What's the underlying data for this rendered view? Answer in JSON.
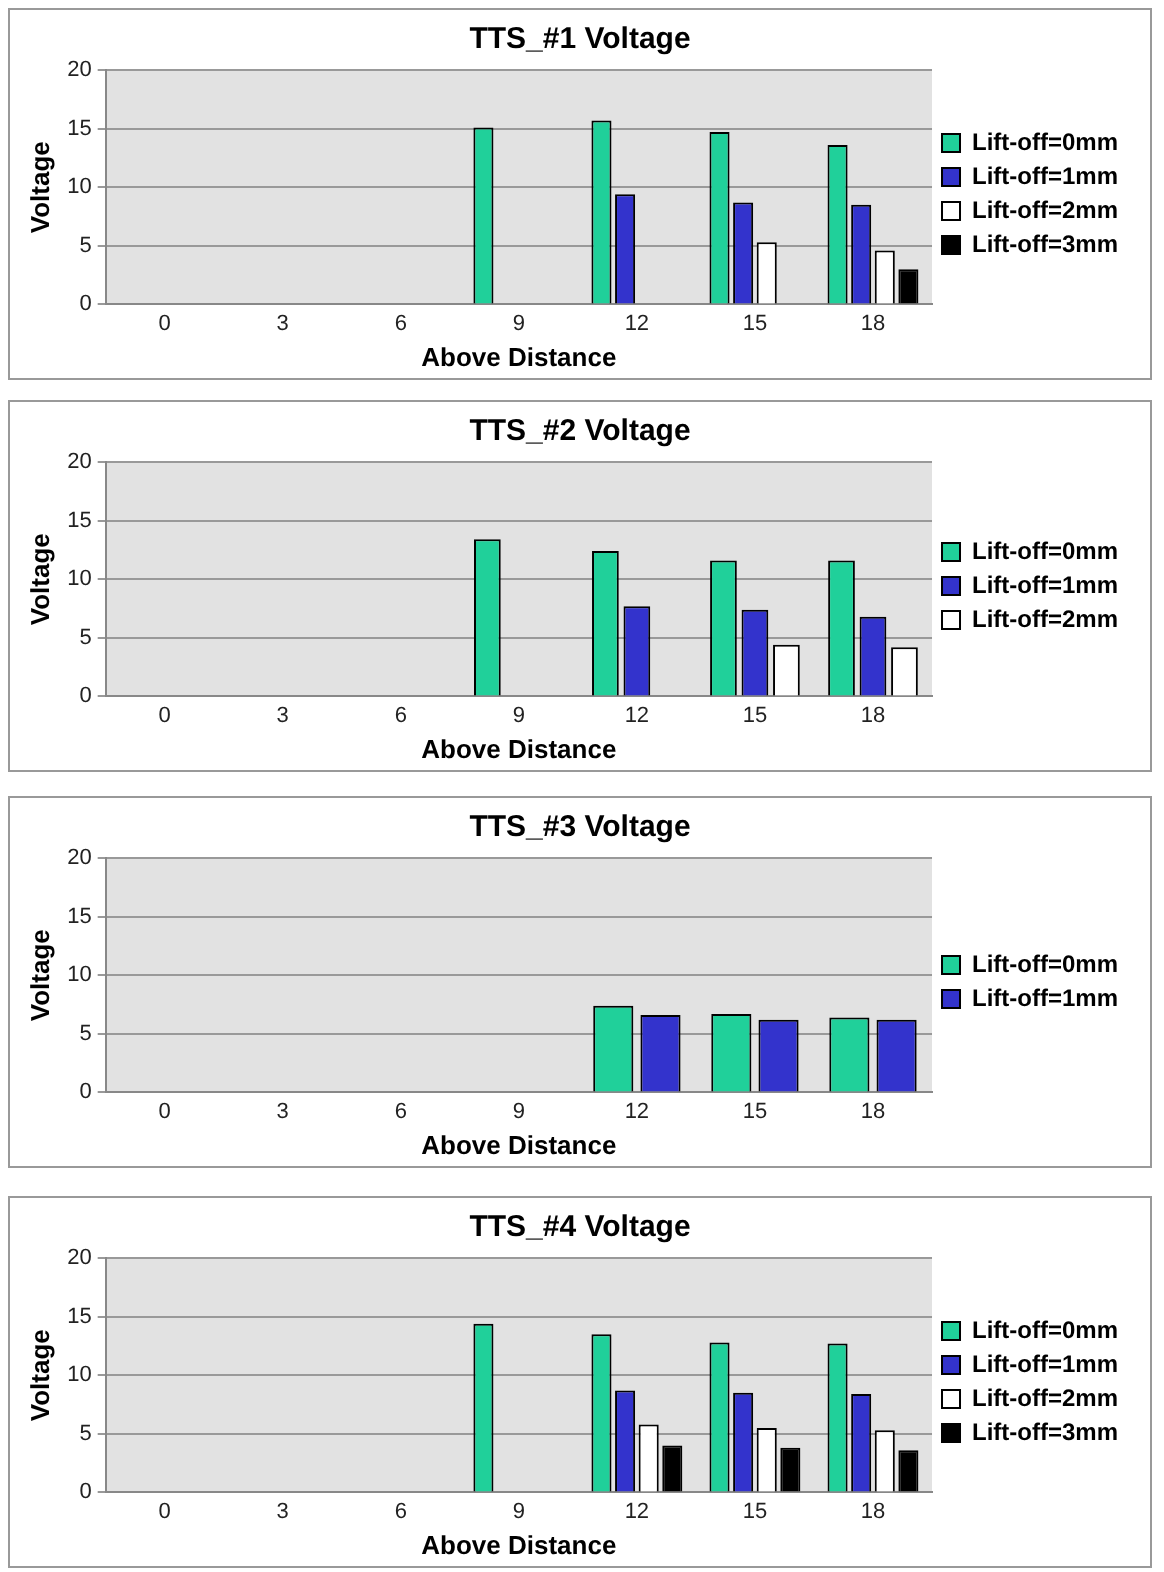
{
  "chart_data": [
    {
      "type": "bar",
      "title": "TTS_#1 Voltage",
      "xlabel": "Above Distance",
      "ylabel": "Voltage",
      "categories": [
        "0",
        "3",
        "6",
        "9",
        "12",
        "15",
        "18"
      ],
      "ylim": [
        0,
        20
      ],
      "yticks": [
        0,
        5,
        10,
        15,
        20
      ],
      "grid": "y",
      "legend": "right",
      "series": [
        {
          "name": "Lift-off=0mm",
          "color": "#20d09a",
          "values": [
            null,
            null,
            null,
            15.1,
            15.7,
            14.7,
            13.6
          ]
        },
        {
          "name": "Lift-off=1mm",
          "color": "#3333cc",
          "values": [
            null,
            null,
            null,
            null,
            9.4,
            8.7,
            8.5
          ]
        },
        {
          "name": "Lift-off=2mm",
          "color": "#ffffff",
          "values": [
            null,
            null,
            null,
            null,
            null,
            5.3,
            4.6
          ]
        },
        {
          "name": "Lift-off=3mm",
          "color": "#000000",
          "values": [
            null,
            null,
            null,
            null,
            null,
            null,
            3.0
          ]
        }
      ]
    },
    {
      "type": "bar",
      "title": "TTS_#2 Voltage",
      "xlabel": "Above Distance",
      "ylabel": "Voltage",
      "categories": [
        "0",
        "3",
        "6",
        "9",
        "12",
        "15",
        "18"
      ],
      "ylim": [
        0,
        20
      ],
      "yticks": [
        0,
        5,
        10,
        15,
        20
      ],
      "grid": "y",
      "legend": "right",
      "series": [
        {
          "name": "Lift-off=0mm",
          "color": "#20d09a",
          "values": [
            null,
            null,
            null,
            13.4,
            12.4,
            11.6,
            11.6
          ]
        },
        {
          "name": "Lift-off=1mm",
          "color": "#3333cc",
          "values": [
            null,
            null,
            null,
            null,
            7.7,
            7.4,
            6.8
          ]
        },
        {
          "name": "Lift-off=2mm",
          "color": "#ffffff",
          "values": [
            null,
            null,
            null,
            null,
            null,
            4.4,
            4.2
          ]
        }
      ]
    },
    {
      "type": "bar",
      "title": "TTS_#3 Voltage",
      "xlabel": "Above Distance",
      "ylabel": "Voltage",
      "categories": [
        "0",
        "3",
        "6",
        "9",
        "12",
        "15",
        "18"
      ],
      "ylim": [
        0,
        20
      ],
      "yticks": [
        0,
        5,
        10,
        15,
        20
      ],
      "grid": "y",
      "legend": "right",
      "series": [
        {
          "name": "Lift-off=0mm",
          "color": "#20d09a",
          "values": [
            null,
            null,
            null,
            null,
            7.4,
            6.7,
            6.4
          ]
        },
        {
          "name": "Lift-off=1mm",
          "color": "#3333cc",
          "values": [
            null,
            null,
            null,
            null,
            6.6,
            6.2,
            6.2
          ]
        }
      ]
    },
    {
      "type": "bar",
      "title": "TTS_#4 Voltage",
      "xlabel": "Above Distance",
      "ylabel": "Voltage",
      "categories": [
        "0",
        "3",
        "6",
        "9",
        "12",
        "15",
        "18"
      ],
      "ylim": [
        0,
        20
      ],
      "yticks": [
        0,
        5,
        10,
        15,
        20
      ],
      "grid": "y",
      "legend": "right",
      "series": [
        {
          "name": "Lift-off=0mm",
          "color": "#20d09a",
          "values": [
            null,
            null,
            null,
            14.4,
            13.5,
            12.8,
            12.7
          ]
        },
        {
          "name": "Lift-off=1mm",
          "color": "#3333cc",
          "values": [
            null,
            null,
            null,
            null,
            8.7,
            8.5,
            8.4
          ]
        },
        {
          "name": "Lift-off=2mm",
          "color": "#ffffff",
          "values": [
            null,
            null,
            null,
            null,
            5.8,
            5.5,
            5.3
          ]
        },
        {
          "name": "Lift-off=3mm",
          "color": "#000000",
          "values": [
            null,
            null,
            null,
            null,
            4.0,
            3.8,
            3.6
          ]
        }
      ]
    }
  ]
}
